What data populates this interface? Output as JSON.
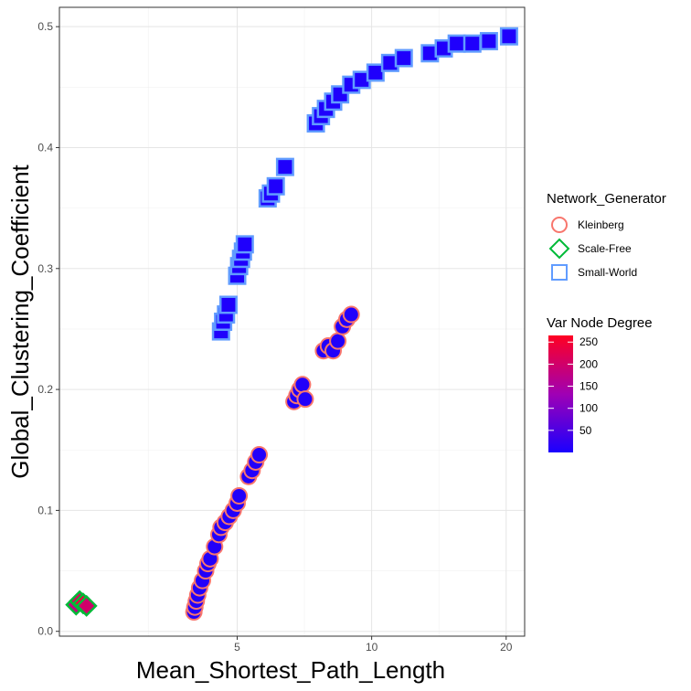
{
  "chart_data": {
    "type": "scatter",
    "xlabel": "Mean_Shortest_Path_Length",
    "ylabel": "Global_Clustering_Coefficient",
    "x_scale": "log",
    "xlim": [
      2.0,
      22.0
    ],
    "ylim": [
      -0.004,
      0.516
    ],
    "x_ticks": [
      5,
      10,
      20
    ],
    "x_tick_labels": [
      "5",
      "10",
      "20"
    ],
    "y_ticks": [
      0.0,
      0.1,
      0.2,
      0.3,
      0.4,
      0.5
    ],
    "y_tick_labels": [
      "0.0",
      "0.1",
      "0.2",
      "0.3",
      "0.4",
      "0.5"
    ],
    "grid": true,
    "legend_position": "right",
    "shape_legend": {
      "title": "Network_Generator",
      "entries": [
        {
          "label": "Kleinberg",
          "shape": "circle",
          "color": "#F8766D"
        },
        {
          "label": "Scale-Free",
          "shape": "diamond",
          "color": "#00BA38"
        },
        {
          "label": "Small-World",
          "shape": "square",
          "color": "#619CFF"
        }
      ]
    },
    "color_legend": {
      "title": "Var Node Degree",
      "low_color": "#1A00FF",
      "mid_color": "#A000B4",
      "high_color": "#FF0022",
      "range": [
        0,
        265
      ],
      "breaks": [
        50,
        100,
        150,
        200,
        250
      ],
      "break_labels": [
        "50",
        "100",
        "150",
        "200",
        "250"
      ]
    },
    "series": [
      {
        "name": "Kleinberg",
        "shape": "circle",
        "stroke_color": "#F8766D",
        "points": [
          {
            "x": 4.0,
            "y": 0.016,
            "var": 8
          },
          {
            "x": 4.02,
            "y": 0.02,
            "var": 8
          },
          {
            "x": 4.05,
            "y": 0.025,
            "var": 8
          },
          {
            "x": 4.08,
            "y": 0.03,
            "var": 8
          },
          {
            "x": 4.12,
            "y": 0.036,
            "var": 8
          },
          {
            "x": 4.18,
            "y": 0.042,
            "var": 8
          },
          {
            "x": 4.25,
            "y": 0.05,
            "var": 8
          },
          {
            "x": 4.3,
            "y": 0.056,
            "var": 8
          },
          {
            "x": 4.35,
            "y": 0.06,
            "var": 8
          },
          {
            "x": 4.45,
            "y": 0.07,
            "var": 8
          },
          {
            "x": 4.55,
            "y": 0.08,
            "var": 8
          },
          {
            "x": 4.6,
            "y": 0.086,
            "var": 8
          },
          {
            "x": 4.7,
            "y": 0.09,
            "var": 8
          },
          {
            "x": 4.8,
            "y": 0.095,
            "var": 8
          },
          {
            "x": 4.9,
            "y": 0.1,
            "var": 8
          },
          {
            "x": 5.0,
            "y": 0.106,
            "var": 8
          },
          {
            "x": 5.05,
            "y": 0.112,
            "var": 8
          },
          {
            "x": 5.3,
            "y": 0.128,
            "var": 8
          },
          {
            "x": 5.4,
            "y": 0.133,
            "var": 8
          },
          {
            "x": 5.5,
            "y": 0.14,
            "var": 8
          },
          {
            "x": 5.6,
            "y": 0.146,
            "var": 8
          },
          {
            "x": 6.7,
            "y": 0.19,
            "var": 8
          },
          {
            "x": 6.8,
            "y": 0.195,
            "var": 8
          },
          {
            "x": 6.9,
            "y": 0.2,
            "var": 8
          },
          {
            "x": 7.0,
            "y": 0.204,
            "var": 8
          },
          {
            "x": 7.1,
            "y": 0.192,
            "var": 8
          },
          {
            "x": 7.8,
            "y": 0.232,
            "var": 8
          },
          {
            "x": 8.0,
            "y": 0.236,
            "var": 8
          },
          {
            "x": 8.2,
            "y": 0.232,
            "var": 8
          },
          {
            "x": 8.4,
            "y": 0.24,
            "var": 8
          },
          {
            "x": 8.6,
            "y": 0.252,
            "var": 8
          },
          {
            "x": 8.8,
            "y": 0.258,
            "var": 8
          },
          {
            "x": 9.0,
            "y": 0.262,
            "var": 8
          }
        ]
      },
      {
        "name": "Scale-Free",
        "shape": "diamond",
        "stroke_color": "#00BA38",
        "points": [
          {
            "x": 2.18,
            "y": 0.022,
            "var": 180
          },
          {
            "x": 2.22,
            "y": 0.025,
            "var": 210
          },
          {
            "x": 2.26,
            "y": 0.023,
            "var": 240
          },
          {
            "x": 2.3,
            "y": 0.021,
            "var": 200
          }
        ]
      },
      {
        "name": "Small-World",
        "shape": "square",
        "stroke_color": "#619CFF",
        "points": [
          {
            "x": 4.6,
            "y": 0.248,
            "var": 5
          },
          {
            "x": 4.65,
            "y": 0.256,
            "var": 5
          },
          {
            "x": 4.72,
            "y": 0.262,
            "var": 5
          },
          {
            "x": 4.78,
            "y": 0.27,
            "var": 5
          },
          {
            "x": 5.0,
            "y": 0.294,
            "var": 5
          },
          {
            "x": 5.05,
            "y": 0.302,
            "var": 5
          },
          {
            "x": 5.1,
            "y": 0.308,
            "var": 5
          },
          {
            "x": 5.15,
            "y": 0.314,
            "var": 5
          },
          {
            "x": 5.2,
            "y": 0.32,
            "var": 5
          },
          {
            "x": 5.85,
            "y": 0.358,
            "var": 5
          },
          {
            "x": 5.95,
            "y": 0.362,
            "var": 5
          },
          {
            "x": 6.1,
            "y": 0.368,
            "var": 5
          },
          {
            "x": 6.4,
            "y": 0.384,
            "var": 5
          },
          {
            "x": 7.5,
            "y": 0.42,
            "var": 5
          },
          {
            "x": 7.7,
            "y": 0.426,
            "var": 5
          },
          {
            "x": 7.9,
            "y": 0.432,
            "var": 5
          },
          {
            "x": 8.2,
            "y": 0.438,
            "var": 5
          },
          {
            "x": 8.5,
            "y": 0.444,
            "var": 5
          },
          {
            "x": 9.0,
            "y": 0.452,
            "var": 5
          },
          {
            "x": 9.5,
            "y": 0.456,
            "var": 5
          },
          {
            "x": 10.2,
            "y": 0.462,
            "var": 5
          },
          {
            "x": 11.0,
            "y": 0.47,
            "var": 5
          },
          {
            "x": 11.8,
            "y": 0.474,
            "var": 5
          },
          {
            "x": 13.5,
            "y": 0.478,
            "var": 5
          },
          {
            "x": 14.5,
            "y": 0.482,
            "var": 5
          },
          {
            "x": 15.5,
            "y": 0.486,
            "var": 5
          },
          {
            "x": 16.8,
            "y": 0.486,
            "var": 5
          },
          {
            "x": 18.3,
            "y": 0.488,
            "var": 5
          },
          {
            "x": 20.3,
            "y": 0.492,
            "var": 5
          }
        ]
      }
    ]
  }
}
